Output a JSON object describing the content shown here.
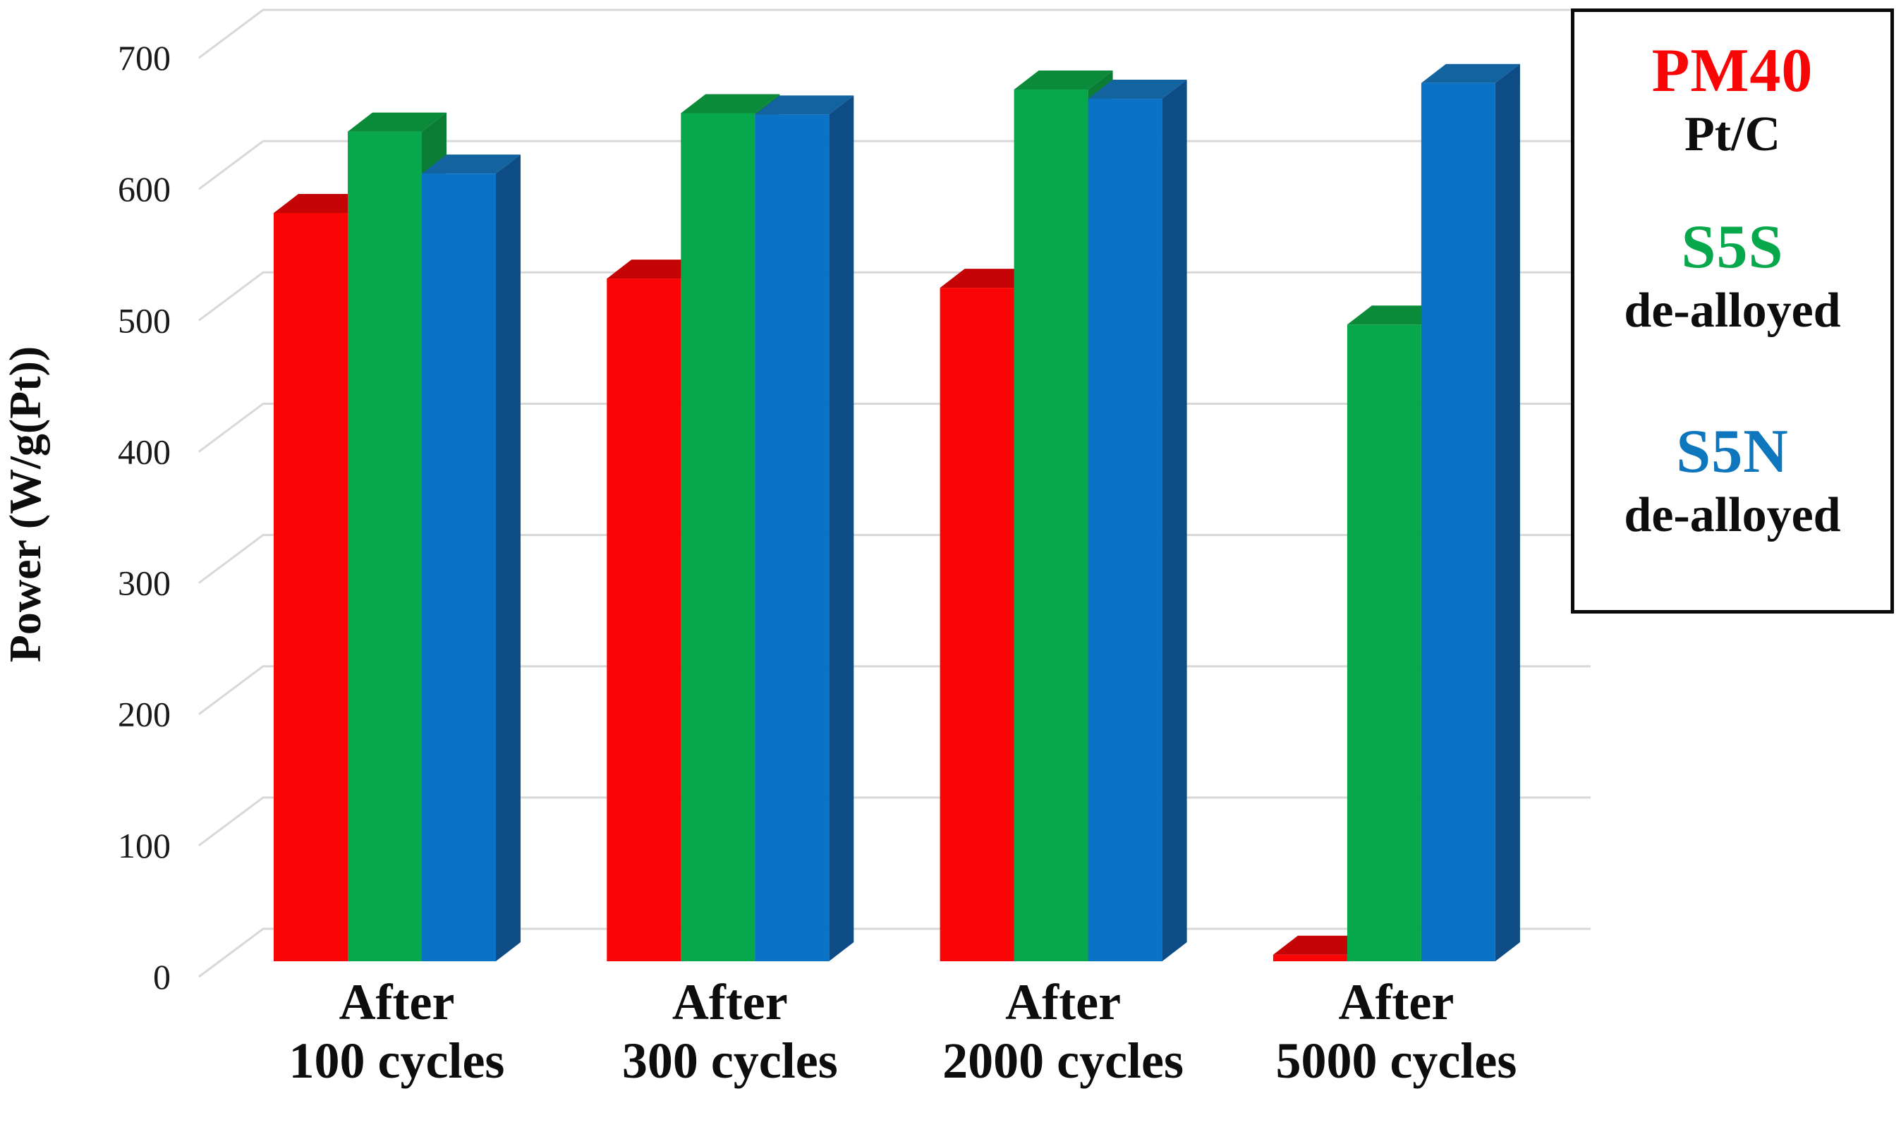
{
  "chart_data": {
    "type": "bar",
    "style": "3d-clustered-column",
    "title": "",
    "ylabel": "Power (W/g(Pt))",
    "xlabel": "",
    "ylim": [
      0,
      700
    ],
    "yticks": [
      0,
      100,
      200,
      300,
      400,
      500,
      600,
      700
    ],
    "grid": true,
    "grid_color": "#d8d8d8",
    "background_color": "#ffffff",
    "legend_position": "top-right",
    "legend_border_color": "#0b0b0b",
    "categories": [
      "After 100 cycles",
      "After 300 cycles",
      "After 2000 cycles",
      "After 5000 cycles"
    ],
    "category_lines": [
      [
        "After",
        "100 cycles"
      ],
      [
        "After",
        "300 cycles"
      ],
      [
        "After",
        "2000 cycles"
      ],
      [
        "After",
        "5000 cycles"
      ]
    ],
    "series": [
      {
        "name": "PM40",
        "sublabel": "Pt/C",
        "values": [
          570,
          520,
          513,
          5
        ],
        "color": "#fa0506",
        "color_top": "#c40405",
        "color_side": "#a31011"
      },
      {
        "name": "S5S",
        "sublabel": "de-alloyed",
        "values": [
          632,
          646,
          664,
          485
        ],
        "color": "#07a74c",
        "color_top": "#0b8a39",
        "color_side": "#0a7c33"
      },
      {
        "name": "S5N",
        "sublabel": "de-alloyed",
        "values": [
          600,
          645,
          657,
          669
        ],
        "color": "#0b73c6",
        "color_top": "#12639f",
        "color_side": "#0d4c84"
      }
    ]
  }
}
